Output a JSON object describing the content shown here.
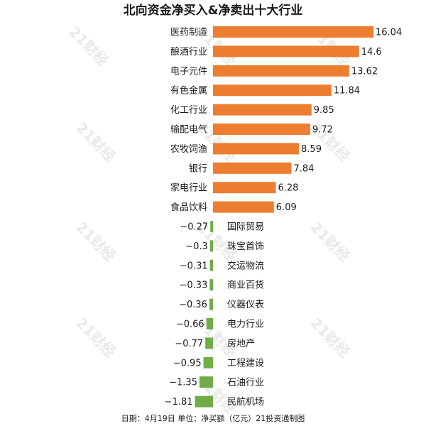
{
  "chart_data": {
    "type": "bar",
    "orientation": "horizontal",
    "title": "北向资金净买入&净卖出十大行业",
    "footer": "日期：4月19日 单位：净买额（亿元）21投资通制图",
    "watermark": "21财经",
    "categories": [
      "医药制造",
      "酿酒行业",
      "电子元件",
      "有色金属",
      "化工行业",
      "输配电气",
      "农牧饲渔",
      "银行",
      "家电行业",
      "食品饮料",
      "国际贸易",
      "珠宝首饰",
      "交运物流",
      "商业百货",
      "仪器仪表",
      "电力行业",
      "房地产",
      "工程建设",
      "石油行业",
      "民航机场"
    ],
    "values": [
      16.04,
      14.6,
      13.62,
      11.84,
      9.85,
      9.72,
      8.59,
      7.84,
      6.28,
      6.09,
      -0.27,
      -0.3,
      -0.31,
      -0.33,
      -0.36,
      -0.66,
      -0.77,
      -0.95,
      -1.35,
      -1.81
    ],
    "value_labels": [
      "16.04",
      "14.6",
      "13.62",
      "11.84",
      "9.85",
      "9.72",
      "8.59",
      "7.84",
      "6.28",
      "6.09",
      "−0.27",
      "−0.3",
      "−0.31",
      "−0.33",
      "−0.36",
      "−0.66",
      "−0.77",
      "−0.95",
      "−1.35",
      "−1.81"
    ],
    "colors": {
      "positive": "#ED7D31",
      "negative": "#70AD47"
    },
    "xlim": [
      -1.81,
      16.04
    ],
    "grid": false,
    "legend": "none"
  }
}
